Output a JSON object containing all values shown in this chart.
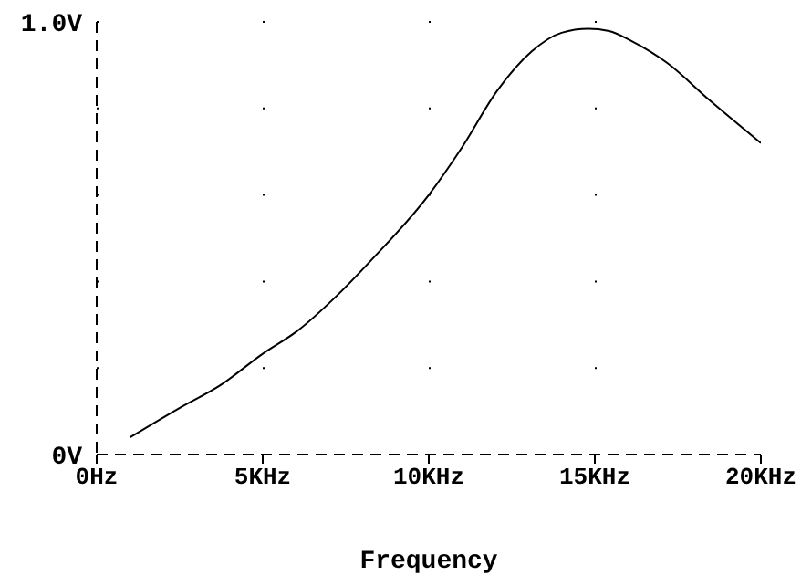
{
  "chart_data": {
    "type": "line",
    "xlabel": "Frequency",
    "x": [
      1.01,
      2.48,
      3.72,
      5,
      6.03,
      7.27,
      8.24,
      10,
      11,
      12.05,
      13.1,
      14,
      14.8,
      15.43,
      16.1,
      17.2,
      18.44,
      20
    ],
    "series": [
      {
        "color": "#000000",
        "values": [
          0.04,
          0.107,
          0.16,
          0.233,
          0.285,
          0.37,
          0.447,
          0.6,
          0.71,
          0.84,
          0.932,
          0.975,
          0.984,
          0.979,
          0.956,
          0.904,
          0.82,
          0.72
        ]
      }
    ],
    "xlim": [
      0,
      20
    ],
    "xticks": [
      {
        "value": 0,
        "label": "0Hz"
      },
      {
        "value": 5,
        "label": "5KHz"
      },
      {
        "value": 10,
        "label": "10KHz"
      },
      {
        "value": 15,
        "label": "15KHz"
      },
      {
        "value": 20,
        "label": "20KHz"
      }
    ],
    "ylim": [
      0,
      1
    ],
    "yticks": [
      {
        "value": 0,
        "label": "0V"
      },
      {
        "value": 0.2,
        "label": null
      },
      {
        "value": 0.4,
        "label": null
      },
      {
        "value": 0.6,
        "label": null
      },
      {
        "value": 0.8,
        "label": null
      },
      {
        "value": 1,
        "label": "1.0V"
      }
    ],
    "grid": true,
    "legend": false,
    "marker": "none",
    "line_style": "solid"
  }
}
